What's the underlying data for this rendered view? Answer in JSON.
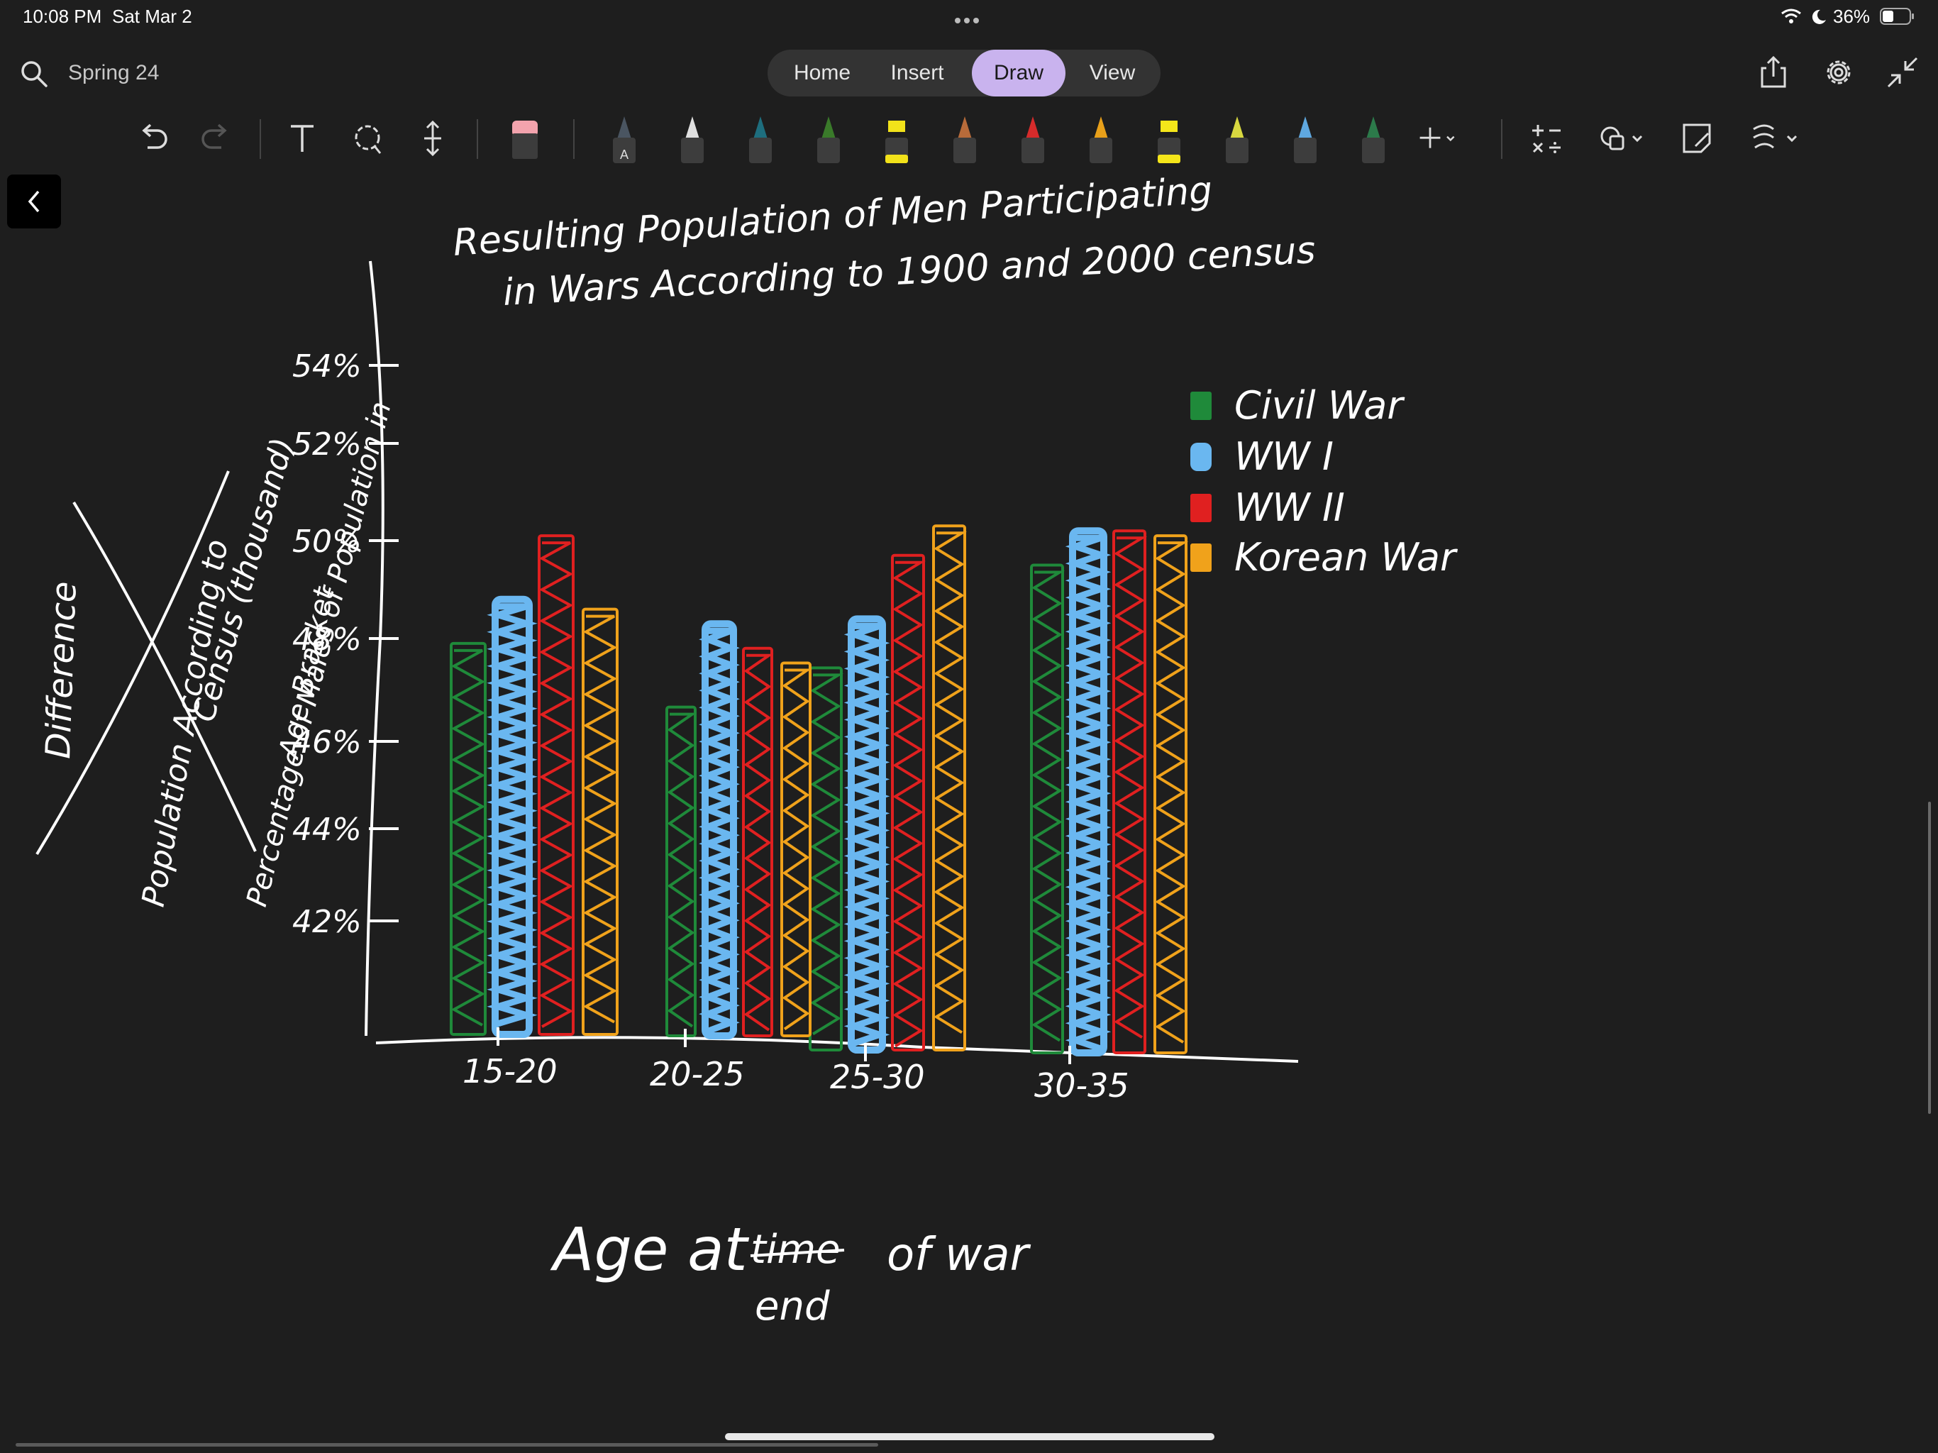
{
  "status_bar": {
    "time": "10:08 PM",
    "date": "Sat Mar 2",
    "battery": "36%"
  },
  "header": {
    "notebook_title": "Spring 24",
    "tabs": [
      {
        "label": "Home",
        "active": false
      },
      {
        "label": "Insert",
        "active": false
      },
      {
        "label": "Draw",
        "active": true
      },
      {
        "label": "View",
        "active": false
      }
    ],
    "icons": [
      "share-icon",
      "gear-icon",
      "collapse-icon"
    ]
  },
  "toolbar": {
    "tools": [
      "undo-icon",
      "redo-icon",
      "text-tool-icon",
      "lasso-icon",
      "insert-space-icon",
      "eraser-icon"
    ],
    "pens": [
      {
        "name": "pen-a",
        "color": "#4a5561",
        "label": "A"
      },
      {
        "name": "pen-white",
        "color": "#e0e0e0"
      },
      {
        "name": "pen-teal",
        "color": "#1e6e7e"
      },
      {
        "name": "pen-green",
        "color": "#3a7a2a"
      },
      {
        "name": "highlighter-yellow",
        "color": "#f2e21a"
      },
      {
        "name": "pen-brown",
        "color": "#b76b3a"
      },
      {
        "name": "pen-red",
        "color": "#d62b2b"
      },
      {
        "name": "pen-orange",
        "color": "#e8a01a"
      },
      {
        "name": "highlighter-yellow-2",
        "color": "#f5e61a"
      },
      {
        "name": "pen-lime",
        "color": "#d8d840"
      },
      {
        "name": "pen-sky",
        "color": "#5fa8e0"
      },
      {
        "name": "pen-darkgreen",
        "color": "#2c7a4a"
      }
    ],
    "extra_tools": [
      "add-pen-icon",
      "math-icon",
      "shapes-icon",
      "sticky-note-icon",
      "ink-to-shape-icon"
    ]
  },
  "canvas": {
    "title_line1": "Resulting Population of Men Participating",
    "title_line2": "in Wars According to 1900 and 2000 census",
    "legend": [
      "Civil War",
      "WW I",
      "WW II",
      "Korean War"
    ],
    "x_labels": [
      "15-20",
      "20-25",
      "25-30",
      "30-35"
    ],
    "y_ticks": [
      "54%",
      "52%",
      "50%",
      "48%",
      "46%",
      "44%",
      "42%"
    ],
    "y_axis_label_1": "Percentage of Males of Population in",
    "y_axis_label_2": "Age Bracket",
    "crossed_label_1": "Difference",
    "crossed_label_2": "Population According to",
    "crossed_label_3": "Census (thousand)",
    "x_axis_label_1": "Age at",
    "x_axis_label_struck": "time",
    "x_axis_label_2": "of war",
    "x_axis_label_3": "end",
    "colors": {
      "civil": "#1f8a3a",
      "ww1": "#6ab7f0",
      "ww2": "#e02020",
      "korean": "#f0a21b"
    }
  },
  "chart_data": {
    "type": "bar",
    "title": "Resulting Population of Men Participating in Wars According to 1900 and 2000 census",
    "xlabel": "Age at end of war",
    "ylabel": "Percentage of Males of Population in Age Bracket",
    "categories": [
      "15-20",
      "20-25",
      "25-30",
      "30-35"
    ],
    "y_ticks": [
      "54%",
      "52%",
      "50%",
      "48%",
      "46%",
      "44%",
      "42%"
    ],
    "series": [
      {
        "name": "Civil War",
        "values": [
          47.9,
          46.6,
          47.4,
          49.5
        ]
      },
      {
        "name": "WW I",
        "values": [
          48.8,
          48.3,
          48.4,
          50.2
        ]
      },
      {
        "name": "WW II",
        "values": [
          50.1,
          47.8,
          49.7,
          50.2
        ]
      },
      {
        "name": "Korean War",
        "values": [
          48.6,
          47.5,
          50.3,
          50.1
        ]
      }
    ],
    "legend_position": "top-right"
  }
}
